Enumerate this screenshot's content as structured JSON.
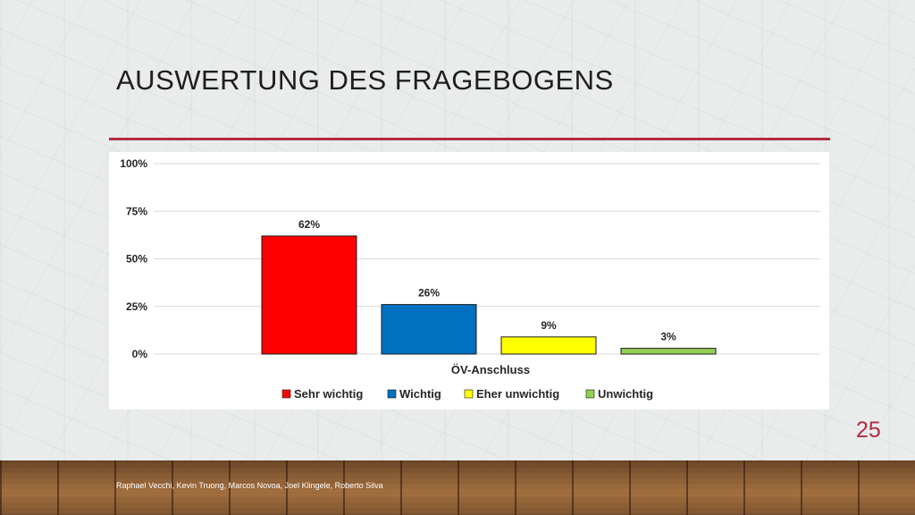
{
  "slide": {
    "title": "AUSWERTUNG DES FRAGEBOGENS",
    "page_number": "25",
    "footer": "Raphael Vecchi, Kevin Truong, Marcos Novoa, Joel Klingele, Roberto Silva"
  },
  "colors": {
    "accent": "#b32a43",
    "series": [
      "#ff0000",
      "#0070c0",
      "#ffff00",
      "#92d050"
    ]
  },
  "chart_data": {
    "type": "bar",
    "categories": [
      "ÖV-Anschluss"
    ],
    "xlabel": "ÖV-Anschluss",
    "ylabel": "",
    "title": "",
    "ylim": [
      0,
      100
    ],
    "y_ticks": [
      "0%",
      "25%",
      "50%",
      "75%",
      "100%"
    ],
    "grid": true,
    "legend_position": "bottom",
    "series": [
      {
        "name": "Sehr wichtig",
        "values": [
          62
        ],
        "label": "62%"
      },
      {
        "name": "Wichtig",
        "values": [
          26
        ],
        "label": "26%"
      },
      {
        "name": "Eher unwichtig",
        "values": [
          9
        ],
        "label": "9%"
      },
      {
        "name": "Unwichtig",
        "values": [
          3
        ],
        "label": "3%"
      }
    ]
  }
}
